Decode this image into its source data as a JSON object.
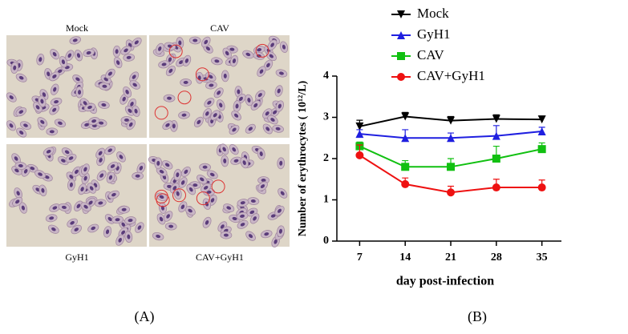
{
  "panel_a": {
    "panel_label": "(A)",
    "labels": [
      "Mock",
      "CAV",
      "GyH1",
      "CAV+GyH1"
    ]
  },
  "chart_data": {
    "type": "line",
    "panel_label": "(B)",
    "xlabel": "day post-infection",
    "ylabel": "Number of erythrocytes ( 10¹²/L)",
    "x": [
      7,
      14,
      21,
      28,
      35
    ],
    "xlim": [
      3.5,
      38
    ],
    "xticks": [
      7,
      14,
      21,
      28,
      35
    ],
    "ylim": [
      0,
      4
    ],
    "yticks": [
      0,
      1,
      2,
      3,
      4
    ],
    "series": [
      {
        "name": "Mock",
        "color": "#000000",
        "marker": "triangle-down",
        "values": [
          2.78,
          3.02,
          2.92,
          2.96,
          2.95
        ],
        "errors": [
          0.15,
          0.1,
          0.1,
          0.1,
          0.08
        ]
      },
      {
        "name": "GyH1",
        "color": "#1f1fe0",
        "marker": "triangle-up",
        "values": [
          2.6,
          2.5,
          2.5,
          2.55,
          2.66
        ],
        "errors": [
          0.1,
          0.2,
          0.12,
          0.25,
          0.1
        ]
      },
      {
        "name": "CAV",
        "color": "#11c011",
        "marker": "square",
        "values": [
          2.3,
          1.8,
          1.8,
          2.0,
          2.23
        ],
        "errors": [
          0.1,
          0.15,
          0.2,
          0.3,
          0.15
        ]
      },
      {
        "name": "CAV+GyH1",
        "color": "#ee1111",
        "marker": "circle",
        "values": [
          2.08,
          1.38,
          1.18,
          1.3,
          1.3
        ],
        "errors": [
          0.25,
          0.15,
          0.15,
          0.2,
          0.18
        ]
      }
    ]
  }
}
